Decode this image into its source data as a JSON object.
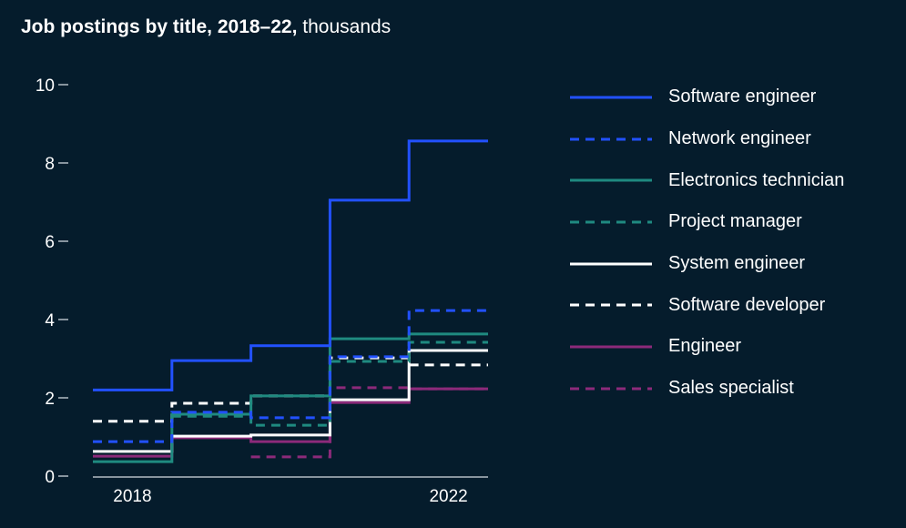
{
  "title": {
    "bold": "Job postings by title, 2018–22,",
    "light": " thousands"
  },
  "chart_data": {
    "type": "line",
    "step": "post",
    "title": "Job postings by title, 2018–22, thousands",
    "xlabel": "",
    "ylabel": "",
    "x": [
      2018,
      2019,
      2020,
      2021,
      2022
    ],
    "x_tick_labels": [
      "2018",
      "2022"
    ],
    "y_ticks": [
      0,
      2,
      4,
      6,
      8,
      10
    ],
    "y_tick_labels": [
      "0",
      "2",
      "4",
      "6",
      "8",
      "10"
    ],
    "ylim": [
      0,
      10
    ],
    "grid": false,
    "legend_position": "right",
    "series": [
      {
        "name": "Software engineer",
        "color": "#2251ff",
        "dash": "solid",
        "values": [
          2.2,
          2.95,
          3.33,
          7.05,
          8.56
        ]
      },
      {
        "name": "Network engineer",
        "color": "#2251ff",
        "dash": "dashed",
        "values": [
          0.88,
          1.63,
          1.49,
          3.05,
          4.23
        ]
      },
      {
        "name": "Electronics technician",
        "color": "#1f8a80",
        "dash": "solid",
        "values": [
          0.37,
          1.58,
          2.05,
          3.51,
          3.63
        ]
      },
      {
        "name": "Project manager",
        "color": "#1f8a80",
        "dash": "dashed",
        "values": [
          null,
          1.53,
          1.3,
          2.93,
          3.42
        ]
      },
      {
        "name": "System engineer",
        "color": "#ffffff",
        "dash": "solid",
        "values": [
          0.63,
          1.02,
          1.05,
          1.95,
          3.21
        ]
      },
      {
        "name": "Software developer",
        "color": "#ffffff",
        "dash": "dashed",
        "values": [
          1.4,
          1.86,
          2.05,
          3.02,
          2.84
        ]
      },
      {
        "name": "Engineer",
        "color": "#8c2a7a",
        "dash": "solid",
        "values": [
          0.51,
          0.98,
          0.88,
          1.88,
          2.23
        ]
      },
      {
        "name": "Sales specialist",
        "color": "#8c2a7a",
        "dash": "dashed",
        "values": [
          null,
          null,
          0.49,
          2.26,
          2.23
        ]
      }
    ]
  },
  "colors": {
    "background": "#051c2c",
    "axis": "#b3bcc4"
  }
}
